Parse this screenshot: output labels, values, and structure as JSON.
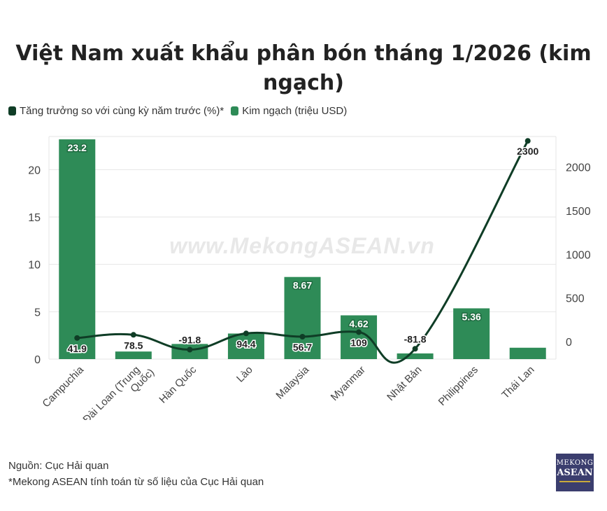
{
  "title": {
    "line1": "Việt Nam xuất khẩu phân bón tháng 1/2026 (kim",
    "line2": "ngạch)"
  },
  "legend": [
    {
      "label": "Tăng trưởng so với cùng kỳ năm trước (%)*",
      "color": "#0f3d26"
    },
    {
      "label": "Kim ngạch (triệu USD)",
      "color": "#2e8b57"
    }
  ],
  "watermark": "www.MekongASEAN.vn",
  "chart_data": {
    "type": "bar",
    "categories": [
      "Campuchia",
      "Đài Loan (Trung Quốc)",
      "Hàn Quốc",
      "Lào",
      "Malaysia",
      "Myanmar",
      "Nhật Bản",
      "Philippines",
      "Thái Lan"
    ],
    "series": [
      {
        "name": "Kim ngạch (triệu USD)",
        "type": "bar",
        "axis": "left",
        "color": "#2e8b57",
        "values": [
          23.2,
          0.8,
          1.6,
          2.7,
          8.67,
          4.62,
          0.6,
          5.36,
          1.2
        ],
        "labels": [
          "23.2",
          "",
          "",
          "",
          "8.67",
          "4.62",
          "",
          "5.36",
          ""
        ]
      },
      {
        "name": "Tăng trưởng so với cùng kỳ năm trước (%)*",
        "type": "line",
        "axis": "right",
        "color": "#0f3d26",
        "values": [
          41.9,
          78.5,
          -91.8,
          94.4,
          56.7,
          109,
          -81.8,
          null,
          2300
        ],
        "labels": [
          "41.9",
          "78.5",
          "-91.8",
          "94.4",
          "56.7",
          "109",
          "-81.8",
          "",
          "2300"
        ]
      }
    ],
    "y_left": {
      "ylim": [
        0,
        23.5
      ],
      "ticks": [
        "0",
        "5",
        "10",
        "15",
        "20"
      ]
    },
    "y_right": {
      "ylim": [
        -200,
        2350
      ],
      "ticks": [
        "0",
        "500",
        "1000",
        "1500",
        "2000"
      ]
    },
    "grid": true,
    "legend_position": "top-left"
  },
  "footer": {
    "source": "Nguồn: Cục Hải quan",
    "note": "*Mekong ASEAN tính toán từ số liệu của Cục Hải quan"
  },
  "logo": {
    "line1": "MEKONG",
    "line2": "ASEAN"
  }
}
